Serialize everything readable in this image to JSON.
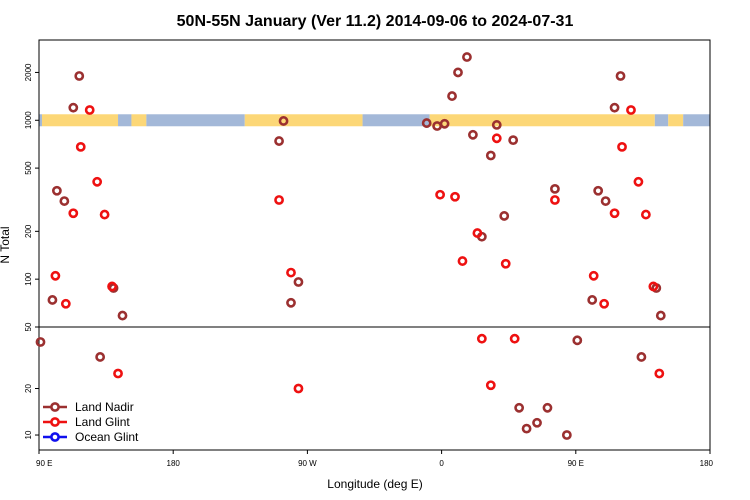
{
  "chart_data": {
    "type": "scatter",
    "title": "50N-55N January (Ver 11.2)   2014-09-06 to 2024-07-31",
    "xlabel": "Longitude (deg E)",
    "ylabel": "N Total",
    "scale_y": "log",
    "grid": false,
    "legend_position": "bottom-left",
    "x_ticks": [
      {
        "value": 90,
        "label": "90 E"
      },
      {
        "value": 180,
        "label": "180"
      },
      {
        "value": 270,
        "label": "90 W"
      },
      {
        "value": 360,
        "label": "0"
      },
      {
        "value": 450,
        "label": "90 E"
      },
      {
        "value": 540,
        "label": "180"
      }
    ],
    "upper_panel": {
      "ylim": [
        50,
        3200
      ],
      "y_ticks": [
        {
          "value": 50,
          "label": "50"
        },
        {
          "value": 100,
          "label": "100"
        },
        {
          "value": 200,
          "label": "200"
        },
        {
          "value": 500,
          "label": "500"
        },
        {
          "value": 1000,
          "label": "1000"
        },
        {
          "value": 2000,
          "label": "2000"
        }
      ]
    },
    "lower_panel": {
      "ylim": [
        8,
        50
      ],
      "y_ticks": [
        {
          "value": 10,
          "label": "10"
        },
        {
          "value": 20,
          "label": "20"
        },
        {
          "value": 50,
          "label": "50"
        }
      ]
    },
    "land_band": {
      "y_value": 1000,
      "land_color": "#fcd777",
      "ocean_color": "#a3b8d8",
      "segments": [
        {
          "x0": 90,
          "x1": 92,
          "kind": "ocean"
        },
        {
          "x0": 92,
          "x1": 143,
          "kind": "land"
        },
        {
          "x0": 143,
          "x1": 152,
          "kind": "ocean"
        },
        {
          "x0": 152,
          "x1": 162,
          "kind": "land"
        },
        {
          "x0": 162,
          "x1": 228,
          "kind": "ocean"
        },
        {
          "x0": 228,
          "x1": 307,
          "kind": "land"
        },
        {
          "x0": 307,
          "x1": 352,
          "kind": "ocean"
        },
        {
          "x0": 352,
          "x1": 503,
          "kind": "land"
        },
        {
          "x0": 503,
          "x1": 512,
          "kind": "ocean"
        },
        {
          "x0": 512,
          "x1": 522,
          "kind": "land"
        },
        {
          "x0": 522,
          "x1": 540,
          "kind": "ocean"
        }
      ]
    },
    "series": [
      {
        "name": "Land Nadir",
        "color": "#9b3030",
        "points": [
          [
            91,
            40
          ],
          [
            99,
            74
          ],
          [
            102,
            360
          ],
          [
            107,
            310
          ],
          [
            113,
            1200
          ],
          [
            117,
            1900
          ],
          [
            131,
            32
          ],
          [
            140,
            88
          ],
          [
            146,
            59
          ],
          [
            251,
            740
          ],
          [
            254,
            990
          ],
          [
            259,
            71
          ],
          [
            264,
            96
          ],
          [
            350,
            960
          ],
          [
            357,
            920
          ],
          [
            362,
            950
          ],
          [
            367,
            1420
          ],
          [
            371,
            2000
          ],
          [
            377,
            2500
          ],
          [
            381,
            810
          ],
          [
            387,
            185
          ],
          [
            393,
            600
          ],
          [
            397,
            935
          ],
          [
            402,
            250
          ],
          [
            408,
            750
          ],
          [
            412,
            15
          ],
          [
            417,
            11
          ],
          [
            424,
            12
          ],
          [
            431,
            15
          ],
          [
            436,
            370
          ],
          [
            444,
            10
          ],
          [
            451,
            41
          ],
          [
            461,
            74
          ],
          [
            465,
            360
          ],
          [
            470,
            310
          ],
          [
            476,
            1200
          ],
          [
            480,
            1900
          ],
          [
            494,
            32
          ],
          [
            504,
            88
          ],
          [
            507,
            59
          ]
        ]
      },
      {
        "name": "Land Glint",
        "color": "#ee1111",
        "points": [
          [
            101,
            105
          ],
          [
            108,
            70
          ],
          [
            113,
            260
          ],
          [
            118,
            680
          ],
          [
            124,
            1160
          ],
          [
            129,
            410
          ],
          [
            134,
            255
          ],
          [
            139,
            90
          ],
          [
            143,
            25
          ],
          [
            251,
            315
          ],
          [
            259,
            110
          ],
          [
            264,
            20
          ],
          [
            359,
            340
          ],
          [
            369,
            330
          ],
          [
            374,
            130
          ],
          [
            384,
            195
          ],
          [
            387,
            42
          ],
          [
            393,
            21
          ],
          [
            397,
            770
          ],
          [
            403,
            125
          ],
          [
            409,
            42
          ],
          [
            436,
            315
          ],
          [
            462,
            105
          ],
          [
            469,
            70
          ],
          [
            476,
            260
          ],
          [
            481,
            680
          ],
          [
            487,
            1160
          ],
          [
            492,
            410
          ],
          [
            497,
            255
          ],
          [
            502,
            90
          ],
          [
            506,
            25
          ]
        ]
      },
      {
        "name": "Ocean Glint",
        "color": "#1010ee",
        "points": []
      }
    ]
  }
}
